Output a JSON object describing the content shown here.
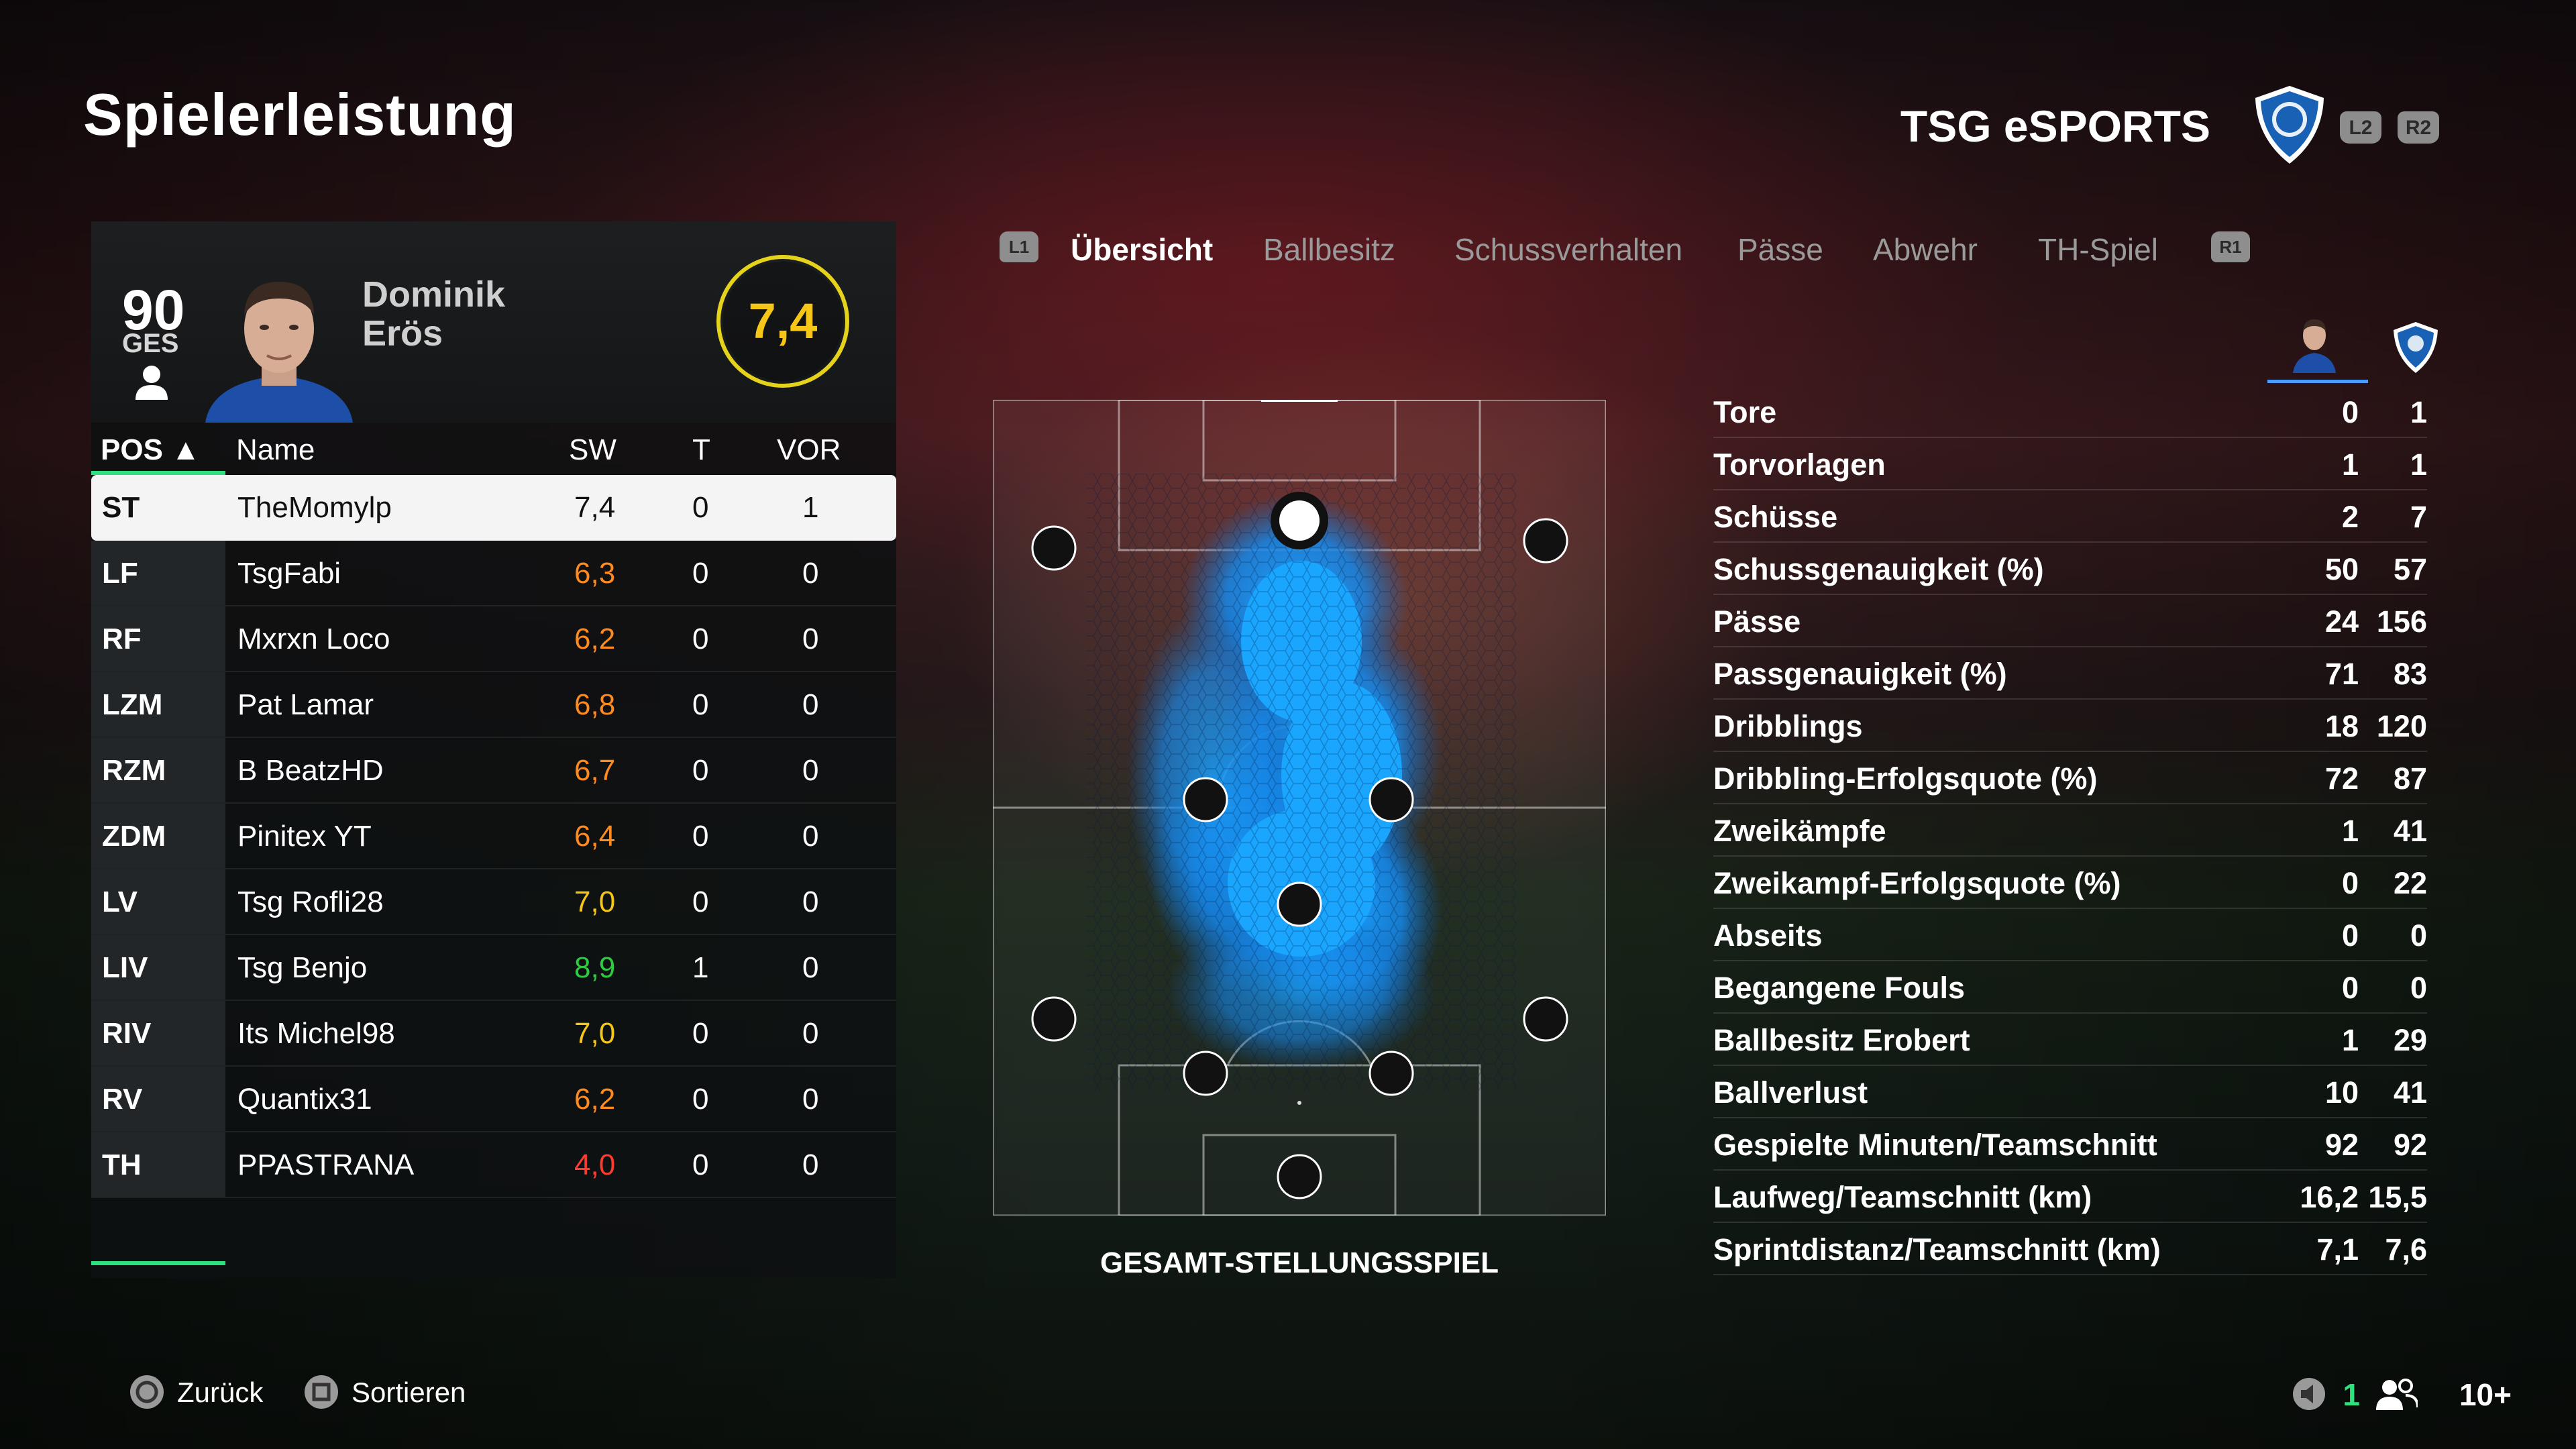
{
  "page": {
    "title": "Spielerleistung",
    "team_name": "TSG eSPORTS"
  },
  "triggers": {
    "l2": "L2",
    "r2": "R2",
    "l1": "L1",
    "r1": "R1"
  },
  "player": {
    "overall": "90",
    "overall_label": "GES",
    "first_name": "Dominik",
    "last_name": "Erös",
    "rating": "7,4"
  },
  "table": {
    "headers": {
      "pos": "POS ▲",
      "name": "Name",
      "sw": "SW",
      "t": "T",
      "vor": "VOR"
    },
    "rows": [
      {
        "pos": "ST",
        "name": "TheMomylp",
        "sw": "7,4",
        "t": "0",
        "vor": "1",
        "color": "#111111"
      },
      {
        "pos": "LF",
        "name": "TsgFabi",
        "sw": "6,3",
        "t": "0",
        "vor": "0",
        "color": "#ff8a1e"
      },
      {
        "pos": "RF",
        "name": "Mxrxn Loco",
        "sw": "6,2",
        "t": "0",
        "vor": "0",
        "color": "#ff8a1e"
      },
      {
        "pos": "LZM",
        "name": "Pat Lamar",
        "sw": "6,8",
        "t": "0",
        "vor": "0",
        "color": "#ff8a1e"
      },
      {
        "pos": "RZM",
        "name": "B BeatzHD",
        "sw": "6,7",
        "t": "0",
        "vor": "0",
        "color": "#ff8a1e"
      },
      {
        "pos": "ZDM",
        "name": "Pinitex YT",
        "sw": "6,4",
        "t": "0",
        "vor": "0",
        "color": "#ff8a1e"
      },
      {
        "pos": "LV",
        "name": "Tsg Rofli28",
        "sw": "7,0",
        "t": "0",
        "vor": "0",
        "color": "#f5c518"
      },
      {
        "pos": "LIV",
        "name": "Tsg  Benjo",
        "sw": "8,9",
        "t": "1",
        "vor": "0",
        "color": "#2ecc40"
      },
      {
        "pos": "RIV",
        "name": "Its Michel98",
        "sw": "7,0",
        "t": "0",
        "vor": "0",
        "color": "#f5c518"
      },
      {
        "pos": "RV",
        "name": "Quantix31",
        "sw": "6,2",
        "t": "0",
        "vor": "0",
        "color": "#ff8a1e"
      },
      {
        "pos": "TH",
        "name": "PPASTRANA",
        "sw": "4,0",
        "t": "0",
        "vor": "0",
        "color": "#ff3b30"
      }
    ]
  },
  "tabs": [
    {
      "label": "Übersicht",
      "active": true
    },
    {
      "label": "Ballbesitz",
      "active": false
    },
    {
      "label": "Schussverhalten",
      "active": false
    },
    {
      "label": "Pässe",
      "active": false
    },
    {
      "label": "Abwehr",
      "active": false
    },
    {
      "label": "TH-Spiel",
      "active": false
    }
  ],
  "pitch": {
    "caption": "GESAMT-STELLUNGSSPIEL"
  },
  "stats": [
    {
      "label": "Tore",
      "player": "0",
      "team": "1"
    },
    {
      "label": "Torvorlagen",
      "player": "1",
      "team": "1"
    },
    {
      "label": "Schüsse",
      "player": "2",
      "team": "7"
    },
    {
      "label": "Schussgenauigkeit (%)",
      "player": "50",
      "team": "57"
    },
    {
      "label": "Pässe",
      "player": "24",
      "team": "156"
    },
    {
      "label": "Passgenauigkeit (%)",
      "player": "71",
      "team": "83"
    },
    {
      "label": "Dribblings",
      "player": "18",
      "team": "120"
    },
    {
      "label": "Dribbling-Erfolgsquote (%)",
      "player": "72",
      "team": "87"
    },
    {
      "label": "Zweikämpfe",
      "player": "1",
      "team": "41"
    },
    {
      "label": "Zweikampf-Erfolgsquote (%)",
      "player": "0",
      "team": "22"
    },
    {
      "label": "Abseits",
      "player": "0",
      "team": "0"
    },
    {
      "label": "Begangene Fouls",
      "player": "0",
      "team": "0"
    },
    {
      "label": "Ballbesitz Erobert",
      "player": "1",
      "team": "29"
    },
    {
      "label": "Ballverlust",
      "player": "10",
      "team": "41"
    },
    {
      "label": "Gespielte Minuten/Teamschnitt",
      "player": "92",
      "team": "92"
    },
    {
      "label": "Laufweg/Teamschnitt (km)",
      "player": "16,2",
      "team": "15,5"
    },
    {
      "label": "Sprintdistanz/Teamschnitt (km)",
      "player": "7,1",
      "team": "7,6"
    }
  ],
  "footer": {
    "back": "Zurück",
    "sort": "Sortieren",
    "count": "1",
    "players": "10+"
  },
  "colors": {
    "accent_green": "#2ee17e",
    "heat_blue": "#1a9bff",
    "ring_yellow": "#e4d31a",
    "rating_text": "#f5c518"
  }
}
